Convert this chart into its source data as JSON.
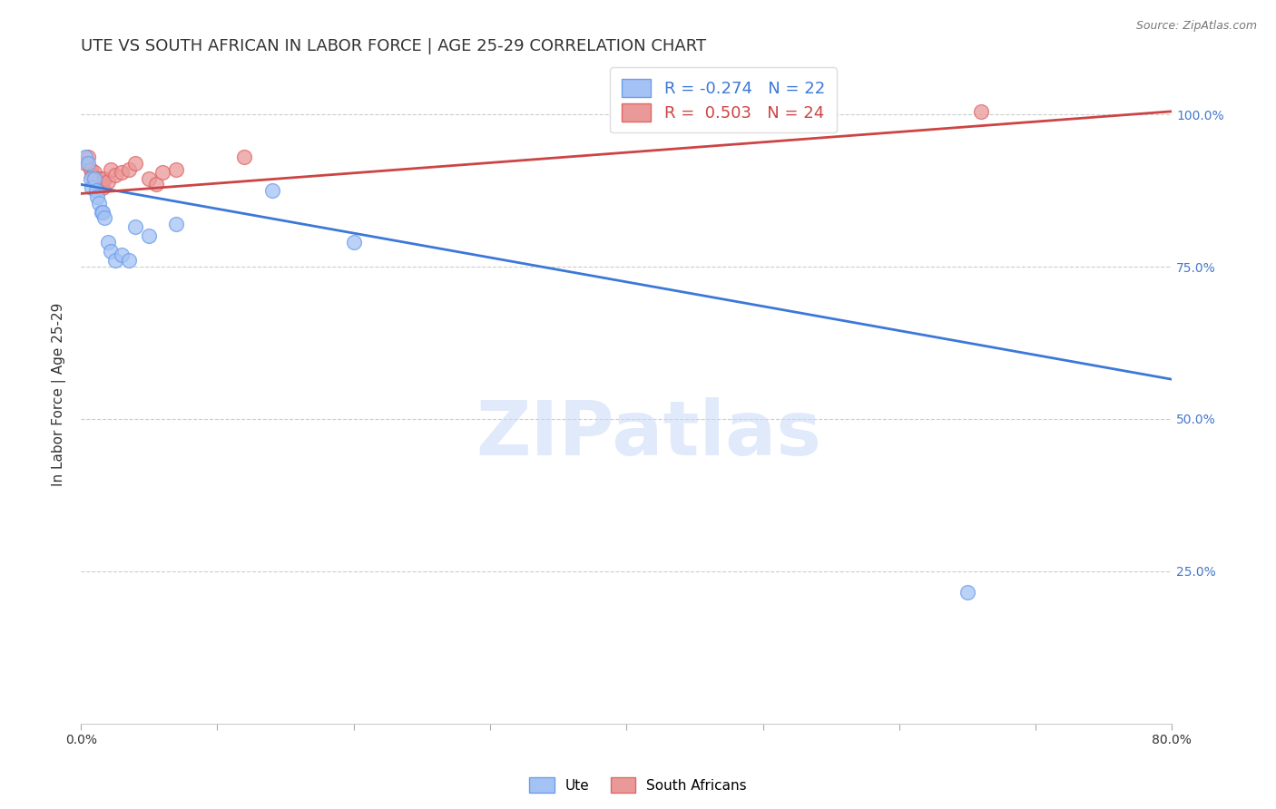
{
  "title": "UTE VS SOUTH AFRICAN IN LABOR FORCE | AGE 25-29 CORRELATION CHART",
  "source": "Source: ZipAtlas.com",
  "ylabel": "In Labor Force | Age 25-29",
  "xlim": [
    0.0,
    0.8
  ],
  "ylim": [
    0.0,
    1.08
  ],
  "xticks": [
    0.0,
    0.1,
    0.2,
    0.3,
    0.4,
    0.5,
    0.6,
    0.7,
    0.8
  ],
  "ytick_labels_right": [
    "100.0%",
    "75.0%",
    "50.0%",
    "25.0%"
  ],
  "ytick_vals_right": [
    1.0,
    0.75,
    0.5,
    0.25
  ],
  "blue_R": -0.274,
  "blue_N": 22,
  "pink_R": 0.503,
  "pink_N": 24,
  "blue_color": "#a4c2f4",
  "pink_color": "#ea9999",
  "blue_edge_color": "#6d9eeb",
  "pink_edge_color": "#e06666",
  "blue_line_color": "#3c78d8",
  "pink_line_color": "#cc4444",
  "watermark_text": "ZIPatlas",
  "blue_line_x": [
    0.0,
    0.8
  ],
  "blue_line_y": [
    0.885,
    0.565
  ],
  "pink_line_x": [
    0.0,
    0.8
  ],
  "pink_line_y": [
    0.87,
    1.005
  ],
  "ute_x": [
    0.003,
    0.005,
    0.007,
    0.008,
    0.01,
    0.011,
    0.012,
    0.013,
    0.015,
    0.016,
    0.017,
    0.02,
    0.022,
    0.025,
    0.03,
    0.035,
    0.04,
    0.05,
    0.07,
    0.14,
    0.2,
    0.65
  ],
  "ute_y": [
    0.93,
    0.92,
    0.895,
    0.88,
    0.895,
    0.875,
    0.865,
    0.855,
    0.84,
    0.84,
    0.83,
    0.79,
    0.775,
    0.76,
    0.77,
    0.76,
    0.815,
    0.8,
    0.82,
    0.875,
    0.79,
    0.215
  ],
  "sa_x": [
    0.003,
    0.005,
    0.007,
    0.008,
    0.01,
    0.011,
    0.012,
    0.013,
    0.014,
    0.015,
    0.016,
    0.017,
    0.02,
    0.022,
    0.025,
    0.03,
    0.035,
    0.04,
    0.05,
    0.055,
    0.06,
    0.07,
    0.12,
    0.66
  ],
  "sa_y": [
    0.92,
    0.93,
    0.91,
    0.9,
    0.905,
    0.895,
    0.89,
    0.88,
    0.895,
    0.885,
    0.88,
    0.895,
    0.89,
    0.91,
    0.9,
    0.905,
    0.91,
    0.92,
    0.895,
    0.885,
    0.905,
    0.91,
    0.93,
    1.005
  ],
  "grid_color": "#cccccc",
  "background_color": "#ffffff",
  "title_fontsize": 13,
  "label_fontsize": 11,
  "tick_fontsize": 10,
  "source_fontsize": 9
}
